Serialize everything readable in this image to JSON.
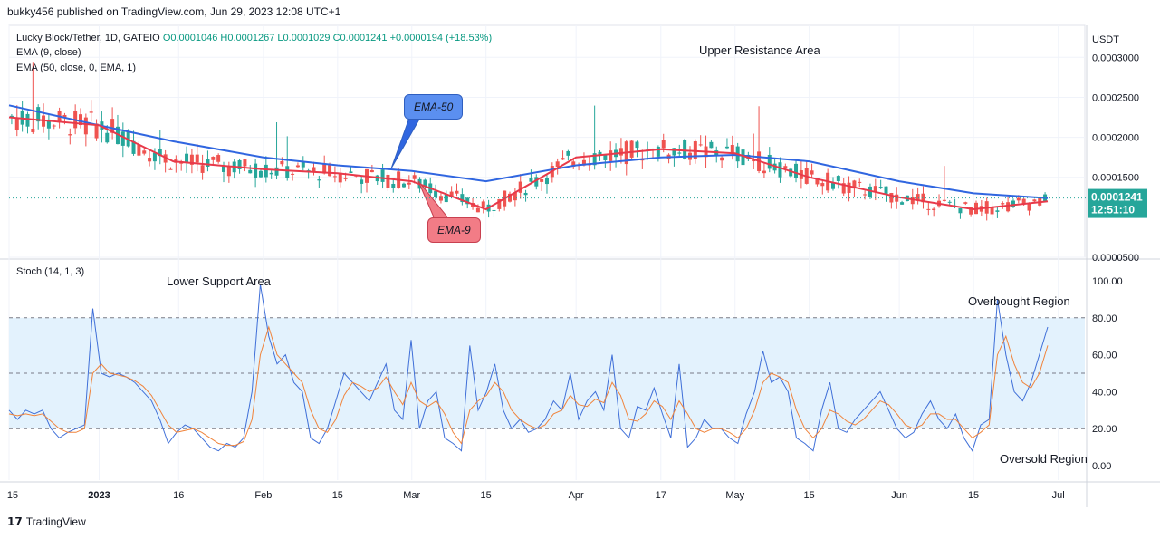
{
  "header": {
    "publisher": "bukky456 published on TradingView.com, Jun 29, 2023 12:08 UTC+1"
  },
  "legend": {
    "symbol": "Lucky Block/Tether, 1D, GATEIO",
    "ohlc": "O0.0001046 H0.0001267 L0.0001029 C0.0001241 +0.0000194 (+18.53%)",
    "ema9": "EMA (9, close)",
    "ema50": "EMA (50, close, 0, EMA, 1)",
    "stoch": "Stoch (14, 1, 3)"
  },
  "annotations": {
    "upper_resistance": "Upper Resistance Area",
    "lower_support": "Lower Support Area",
    "overbought": "Overbought Region",
    "oversold": "Oversold Region",
    "ema50_callout": "EMA-50",
    "ema9_callout": "EMA-9"
  },
  "price_axis": {
    "currency": "USDT",
    "ticks": [
      "0.0003000",
      "0.0002500",
      "0.0002000",
      "0.0001500",
      "0.0000500"
    ],
    "last_price": "0.0001241",
    "countdown": "12:51:10"
  },
  "stoch_axis": {
    "ticks": [
      "100.00",
      "80.00",
      "60.00",
      "40.00",
      "20.00",
      "0.00"
    ]
  },
  "time_axis": {
    "labels": [
      "15",
      "2023",
      "16",
      "Feb",
      "15",
      "Mar",
      "15",
      "Apr",
      "17",
      "May",
      "15",
      "Jun",
      "15",
      "Jul"
    ]
  },
  "footer": {
    "brand": "TradingView"
  },
  "colors": {
    "up": "#26a69a",
    "down": "#ef5350",
    "ema9": "#e8394a",
    "ema50": "#3066e0",
    "stoch_k": "#3f6fd8",
    "stoch_d": "#f0843c",
    "band": "#e3f2fd"
  },
  "chart_data": [
    {
      "type": "candlestick",
      "title": "Lucky Block/Tether, 1D, GATEIO",
      "x_range": [
        "2022-12-15",
        "2023-06-29"
      ],
      "ylim": [
        5e-05,
        0.00034
      ],
      "last": {
        "open": 0.0001046,
        "high": 0.0001267,
        "low": 0.0001029,
        "close": 0.0001241
      },
      "series": [
        {
          "name": "EMA (9, close)",
          "x": [
            "2022-12-15",
            "2023-01-01",
            "2023-01-15",
            "2023-02-01",
            "2023-02-15",
            "2023-03-01",
            "2023-03-15",
            "2023-04-01",
            "2023-04-17",
            "2023-05-01",
            "2023-05-15",
            "2023-06-01",
            "2023-06-15",
            "2023-06-29"
          ],
          "values": [
            0.000225,
            0.000215,
            0.00017,
            0.00016,
            0.000155,
            0.000145,
            0.00011,
            0.000175,
            0.000185,
            0.00018,
            0.00015,
            0.000125,
            0.00011,
            0.00012
          ]
        },
        {
          "name": "EMA (50, close, 0, EMA, 1)",
          "x": [
            "2022-12-15",
            "2023-01-01",
            "2023-01-15",
            "2023-02-01",
            "2023-02-15",
            "2023-03-01",
            "2023-03-15",
            "2023-04-01",
            "2023-04-17",
            "2023-05-01",
            "2023-05-15",
            "2023-06-01",
            "2023-06-15",
            "2023-06-29"
          ],
          "values": [
            0.00024,
            0.000215,
            0.000195,
            0.000175,
            0.000165,
            0.000158,
            0.000145,
            0.000165,
            0.000175,
            0.000178,
            0.00017,
            0.000145,
            0.00013,
            0.000124
          ]
        }
      ]
    },
    {
      "type": "line",
      "title": "Stoch (14, 1, 3)",
      "ylim": [
        0,
        100
      ],
      "bands": [
        20,
        50,
        80
      ],
      "series": [
        {
          "name": "%K",
          "values": [
            30,
            25,
            30,
            28,
            30,
            20,
            15,
            18,
            20,
            22,
            85,
            50,
            48,
            50,
            48,
            45,
            40,
            35,
            25,
            12,
            18,
            22,
            20,
            15,
            10,
            8,
            12,
            10,
            15,
            40,
            98,
            70,
            55,
            60,
            45,
            40,
            15,
            12,
            20,
            35,
            50,
            45,
            40,
            35,
            45,
            55,
            30,
            25,
            68,
            20,
            35,
            40,
            15,
            12,
            8,
            65,
            30,
            40,
            55,
            30,
            20,
            25,
            18,
            20,
            25,
            35,
            30,
            50,
            25,
            35,
            40,
            30,
            60,
            20,
            15,
            32,
            30,
            42,
            28,
            15,
            55,
            10,
            15,
            25,
            20,
            20,
            15,
            12,
            28,
            40,
            62,
            45,
            48,
            40,
            15,
            12,
            8,
            30,
            45,
            20,
            18,
            25,
            30,
            35,
            40,
            30,
            20,
            15,
            18,
            28,
            35,
            25,
            20,
            28,
            15,
            8,
            22,
            25,
            90,
            60,
            40,
            35,
            45,
            60,
            75
          ]
        },
        {
          "name": "%D",
          "values": [
            28,
            27,
            28,
            27,
            28,
            24,
            20,
            18,
            18,
            20,
            50,
            55,
            50,
            49,
            48,
            46,
            43,
            38,
            30,
            22,
            18,
            19,
            20,
            18,
            15,
            12,
            11,
            11,
            13,
            25,
            60,
            75,
            60,
            55,
            50,
            45,
            30,
            20,
            18,
            25,
            38,
            45,
            43,
            40,
            42,
            48,
            40,
            33,
            45,
            35,
            32,
            35,
            28,
            18,
            12,
            30,
            35,
            38,
            45,
            40,
            30,
            25,
            22,
            20,
            22,
            28,
            30,
            38,
            33,
            32,
            36,
            34,
            45,
            38,
            25,
            24,
            28,
            35,
            32,
            25,
            35,
            28,
            20,
            18,
            20,
            20,
            18,
            15,
            20,
            30,
            45,
            50,
            48,
            45,
            30,
            20,
            15,
            20,
            30,
            28,
            24,
            22,
            25,
            30,
            35,
            33,
            28,
            22,
            20,
            22,
            28,
            28,
            25,
            25,
            20,
            15,
            18,
            22,
            60,
            70,
            55,
            45,
            42,
            50,
            65
          ]
        }
      ]
    }
  ]
}
